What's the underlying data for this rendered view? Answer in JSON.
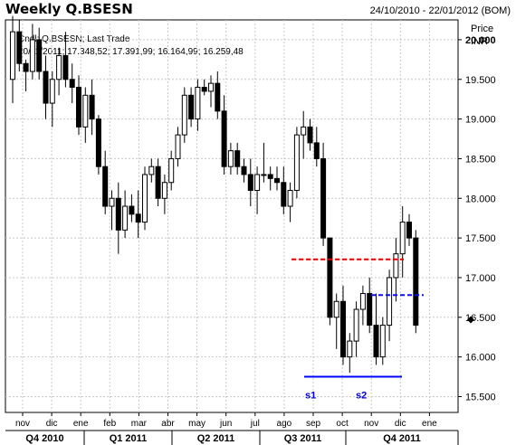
{
  "header": {
    "title": "Weekly Q.BSESN",
    "date_range": "24/10/2010 - 22/01/2012 (BOM)"
  },
  "legend": {
    "line1": "Cndl; Q.BSESN; Last Trade",
    "line2": "20/11/2011; 17.348,52; 17.391,99; 16.164,99; 16.259,48"
  },
  "price_axis": {
    "title": "Price",
    "unit": "INR"
  },
  "colors": {
    "up_candle": "#ffffff",
    "down_candle": "#000000",
    "grid": "#c8c8c8",
    "red_line": "#e00000",
    "blue_line": "#1010e0",
    "support_line": "#0000ff",
    "label_blue": "#0000cc"
  },
  "chart_data": {
    "type": "candlestick",
    "ylim": [
      15300,
      20250
    ],
    "yticks": [
      15500,
      16000,
      16500,
      17000,
      17500,
      18000,
      18500,
      19000,
      19500,
      20000
    ],
    "ytick_labels": [
      "15.500",
      "16.000",
      "16.500",
      "17.000",
      "17.500",
      "18.000",
      "18.500",
      "19.000",
      "19.500",
      "20.000"
    ],
    "highlight_tick": "20.000",
    "x_month_labels": [
      "nov",
      "dic",
      "ene",
      "feb",
      "mar",
      "abr",
      "may",
      "jun",
      "jul",
      "ago",
      "sep",
      "oct",
      "nov",
      "dic",
      "ene"
    ],
    "x_quarter_labels": [
      "Q4 2010",
      "Q1 2011",
      "Q2 2011",
      "Q3 2011",
      "Q4 2011"
    ],
    "candles": [
      [
        19500,
        20300,
        19200,
        20100
      ],
      [
        20100,
        20250,
        19600,
        19700
      ],
      [
        19700,
        19750,
        19350,
        19600
      ],
      [
        19600,
        20200,
        19500,
        20000
      ],
      [
        20000,
        20150,
        19500,
        19600
      ],
      [
        19600,
        19800,
        19000,
        19200
      ],
      [
        19200,
        19600,
        18900,
        19500
      ],
      [
        19500,
        19900,
        19300,
        19800
      ],
      [
        19800,
        20100,
        19400,
        19500
      ],
      [
        19500,
        19700,
        19200,
        19400
      ],
      [
        19400,
        19550,
        18800,
        18900
      ],
      [
        18900,
        19400,
        18700,
        19300
      ],
      [
        19300,
        19500,
        18800,
        19000
      ],
      [
        19000,
        19050,
        18300,
        18400
      ],
      [
        18400,
        18600,
        17800,
        17900
      ],
      [
        17900,
        18100,
        17600,
        18000
      ],
      [
        18000,
        18200,
        17300,
        17600
      ],
      [
        17600,
        18100,
        17500,
        17900
      ],
      [
        17900,
        18050,
        17700,
        17800
      ],
      [
        17800,
        18100,
        17500,
        17700
      ],
      [
        17700,
        18400,
        17600,
        18300
      ],
      [
        18300,
        18500,
        18200,
        18400
      ],
      [
        18400,
        18500,
        17900,
        18000
      ],
      [
        18000,
        18300,
        17800,
        18200
      ],
      [
        18200,
        18600,
        18100,
        18500
      ],
      [
        18500,
        18900,
        18400,
        18800
      ],
      [
        18800,
        19400,
        18700,
        19300
      ],
      [
        19300,
        19400,
        18900,
        19000
      ],
      [
        19000,
        19500,
        18850,
        19400
      ],
      [
        19400,
        19500,
        19300,
        19350
      ],
      [
        19350,
        19550,
        19150,
        19450
      ],
      [
        19450,
        19600,
        19000,
        19100
      ],
      [
        19100,
        19300,
        18300,
        18400
      ],
      [
        18400,
        18700,
        18300,
        18600
      ],
      [
        18600,
        18700,
        18300,
        18400
      ],
      [
        18400,
        18500,
        18200,
        18300
      ],
      [
        18300,
        18500,
        17900,
        18100
      ],
      [
        18100,
        18400,
        17800,
        18300
      ],
      [
        18300,
        18700,
        18200,
        18300
      ],
      [
        18300,
        18400,
        18100,
        18250
      ],
      [
        18250,
        18400,
        18100,
        18200
      ],
      [
        18200,
        18400,
        17800,
        17900
      ],
      [
        17900,
        18200,
        17700,
        18100
      ],
      [
        18100,
        18900,
        18000,
        18800
      ],
      [
        18800,
        19100,
        18500,
        18900
      ],
      [
        18900,
        19000,
        18600,
        18700
      ],
      [
        18700,
        18900,
        18400,
        18500
      ],
      [
        18500,
        18700,
        17400,
        17500
      ],
      [
        17500,
        17500,
        16400,
        16500
      ],
      [
        16500,
        16800,
        16100,
        16700
      ],
      [
        16700,
        16900,
        15900,
        16000
      ],
      [
        16000,
        16300,
        15800,
        16200
      ],
      [
        16200,
        16700,
        16000,
        16600
      ],
      [
        16600,
        16900,
        16400,
        16800
      ],
      [
        16800,
        17000,
        16300,
        16400
      ],
      [
        16400,
        16800,
        15900,
        16000
      ],
      [
        16000,
        16500,
        15900,
        16400
      ],
      [
        16400,
        17100,
        16200,
        17000
      ],
      [
        17000,
        17500,
        16700,
        17300
      ],
      [
        17300,
        17900,
        17000,
        17700
      ],
      [
        17700,
        17800,
        17400,
        17500
      ],
      [
        17500,
        17600,
        16300,
        16400
      ]
    ],
    "annotations": {
      "red_line": 17230,
      "blue_dash_line": 16780,
      "support_line": 15750,
      "labels": [
        "s1",
        "s2"
      ]
    }
  }
}
